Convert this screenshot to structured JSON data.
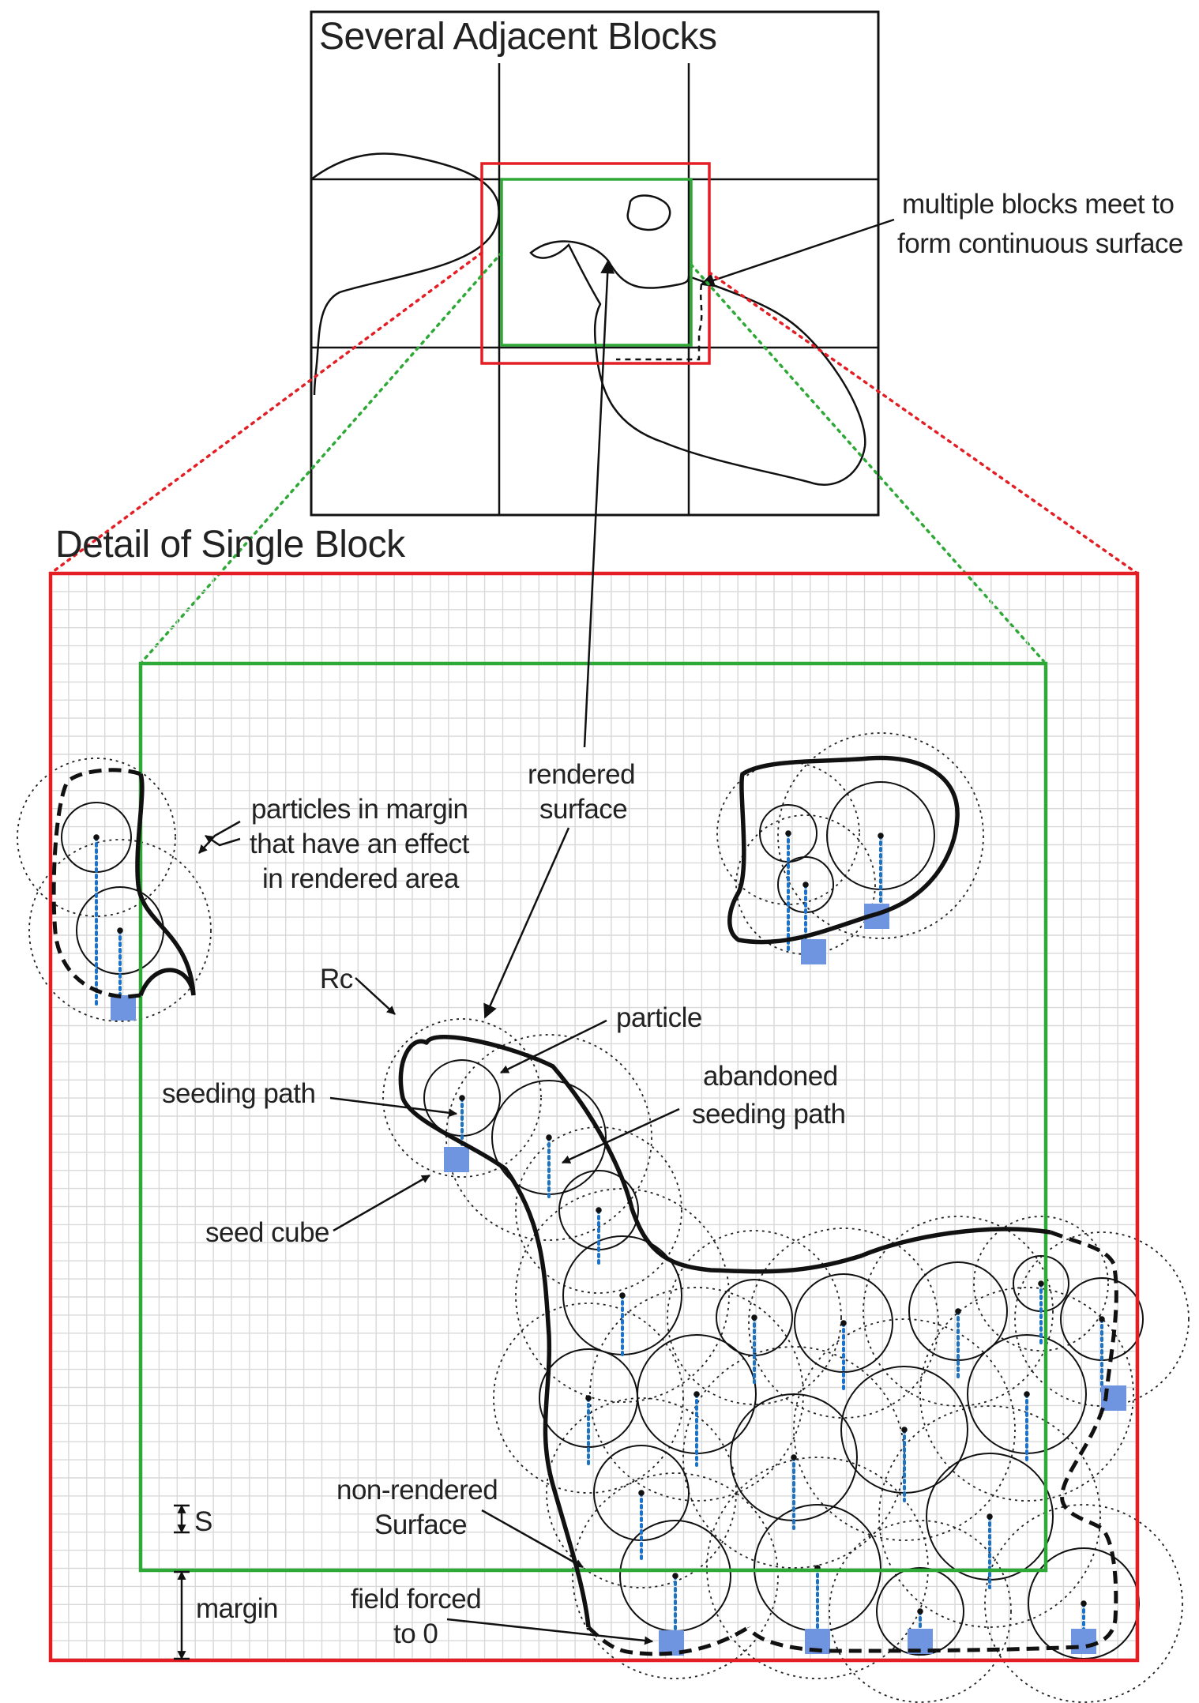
{
  "overview": {
    "title": "Several Adjacent Blocks",
    "callout": [
      "multiple blocks meet to",
      "form continuous surface"
    ]
  },
  "detail": {
    "title": "Detail of Single Block",
    "labels": {
      "rendered_surface": [
        "rendered",
        "surface"
      ],
      "margin_particles": [
        "particles in margin",
        "that have an effect",
        "in rendered area"
      ],
      "rc": "Rc",
      "particle": "particle",
      "seeding_path": "seeding path",
      "abandoned": [
        "abandoned",
        "seeding path"
      ],
      "seed_cube": "seed cube",
      "non_rendered": [
        "non-rendered",
        "Surface"
      ],
      "field_forced": [
        "field forced",
        "to 0"
      ],
      "s": "S",
      "margin": "margin"
    }
  },
  "colors": {
    "block_outline": "#e31e24",
    "rendered_area": "#2ea836",
    "seed_cube": "#6f95e0",
    "seeding_path": "#1a72c9",
    "grid": "#d9d9d9",
    "ink": "#111111"
  },
  "icons": {
    "particle_marker": "filled-dot",
    "influence_radius": "dotted-circle",
    "seed_cube": "blue-square"
  }
}
